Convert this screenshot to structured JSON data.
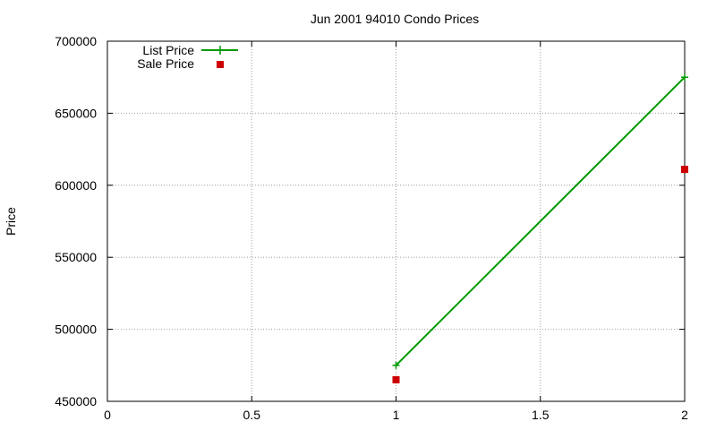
{
  "chart_data": {
    "type": "line",
    "title": "Jun 2001 94010 Condo Prices",
    "xlabel": "",
    "ylabel": "Price",
    "xlim": [
      0,
      2
    ],
    "ylim": [
      450000,
      700000
    ],
    "xticks": [
      "0",
      "0.5",
      "1",
      "1.5",
      "2"
    ],
    "xtick_values": [
      0,
      0.5,
      1,
      1.5,
      2
    ],
    "yticks": [
      "450000",
      "500000",
      "550000",
      "600000",
      "650000",
      "700000"
    ],
    "ytick_values": [
      450000,
      500000,
      550000,
      600000,
      650000,
      700000
    ],
    "grid": true,
    "legend_position": "top-left",
    "series": [
      {
        "name": "List Price",
        "style": "line-with-plus-markers",
        "color": "#009900",
        "points": [
          {
            "x": 1,
            "y": 475000
          },
          {
            "x": 2,
            "y": 675000
          }
        ]
      },
      {
        "name": "Sale Price",
        "style": "square-markers",
        "color": "#cc0000",
        "points": [
          {
            "x": 1,
            "y": 465000
          },
          {
            "x": 2,
            "y": 611000
          }
        ]
      }
    ]
  }
}
